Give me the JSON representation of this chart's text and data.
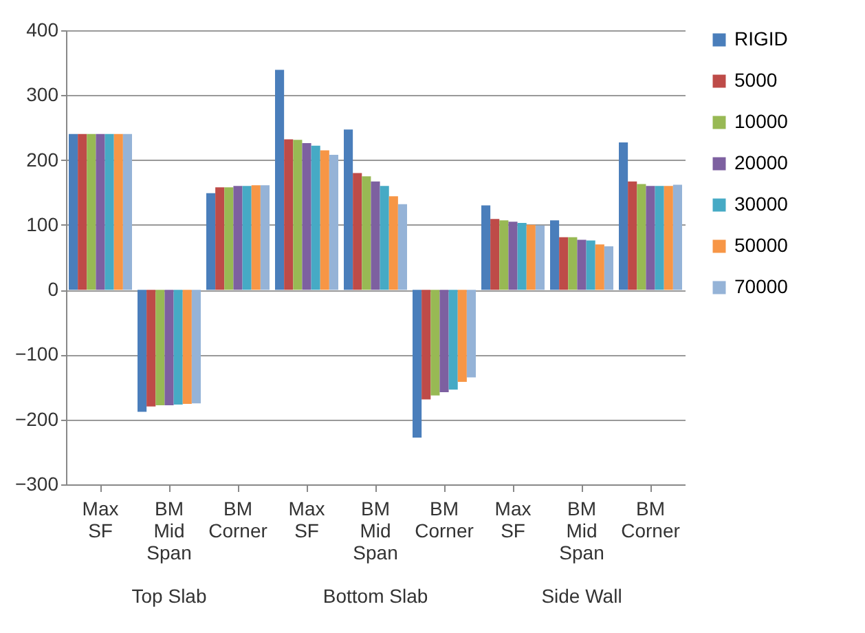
{
  "chart_data": {
    "type": "bar",
    "categories": [
      "Max SF",
      "BM Mid Span",
      "BM Corner",
      "Max SF",
      "BM Mid Span",
      "BM Corner",
      "Max SF",
      "BM Mid Span",
      "BM Corner"
    ],
    "annotations": [
      "Top Slab",
      "Bottom Slab",
      "Side Wall"
    ],
    "series": [
      {
        "name": "RIGID",
        "color": "#4a7ebb",
        "values": [
          240,
          -188,
          149,
          339,
          247,
          -228,
          130,
          107,
          227
        ]
      },
      {
        "name": "5000",
        "color": "#be4b48",
        "values": [
          240,
          -180,
          158,
          232,
          180,
          -169,
          109,
          81,
          167
        ]
      },
      {
        "name": "10000",
        "color": "#98b954",
        "values": [
          240,
          -178,
          158,
          231,
          175,
          -163,
          107,
          81,
          163
        ]
      },
      {
        "name": "20000",
        "color": "#7d60a0",
        "values": [
          240,
          -178,
          160,
          226,
          167,
          -158,
          105,
          77,
          160
        ]
      },
      {
        "name": "30000",
        "color": "#46aac5",
        "values": [
          240,
          -177,
          160,
          222,
          160,
          -154,
          103,
          76,
          160
        ]
      },
      {
        "name": "50000",
        "color": "#f79646",
        "values": [
          240,
          -176,
          161,
          215,
          144,
          -142,
          100,
          70,
          160
        ]
      },
      {
        "name": "70000",
        "color": "#95b3d7",
        "values": [
          240,
          -175,
          161,
          208,
          132,
          -135,
          99,
          67,
          162
        ]
      }
    ],
    "ylim": [
      -300,
      400
    ],
    "yticks": [
      -300,
      -200,
      -100,
      0,
      100,
      200,
      300,
      400
    ],
    "grid": "y",
    "legend": "right"
  }
}
